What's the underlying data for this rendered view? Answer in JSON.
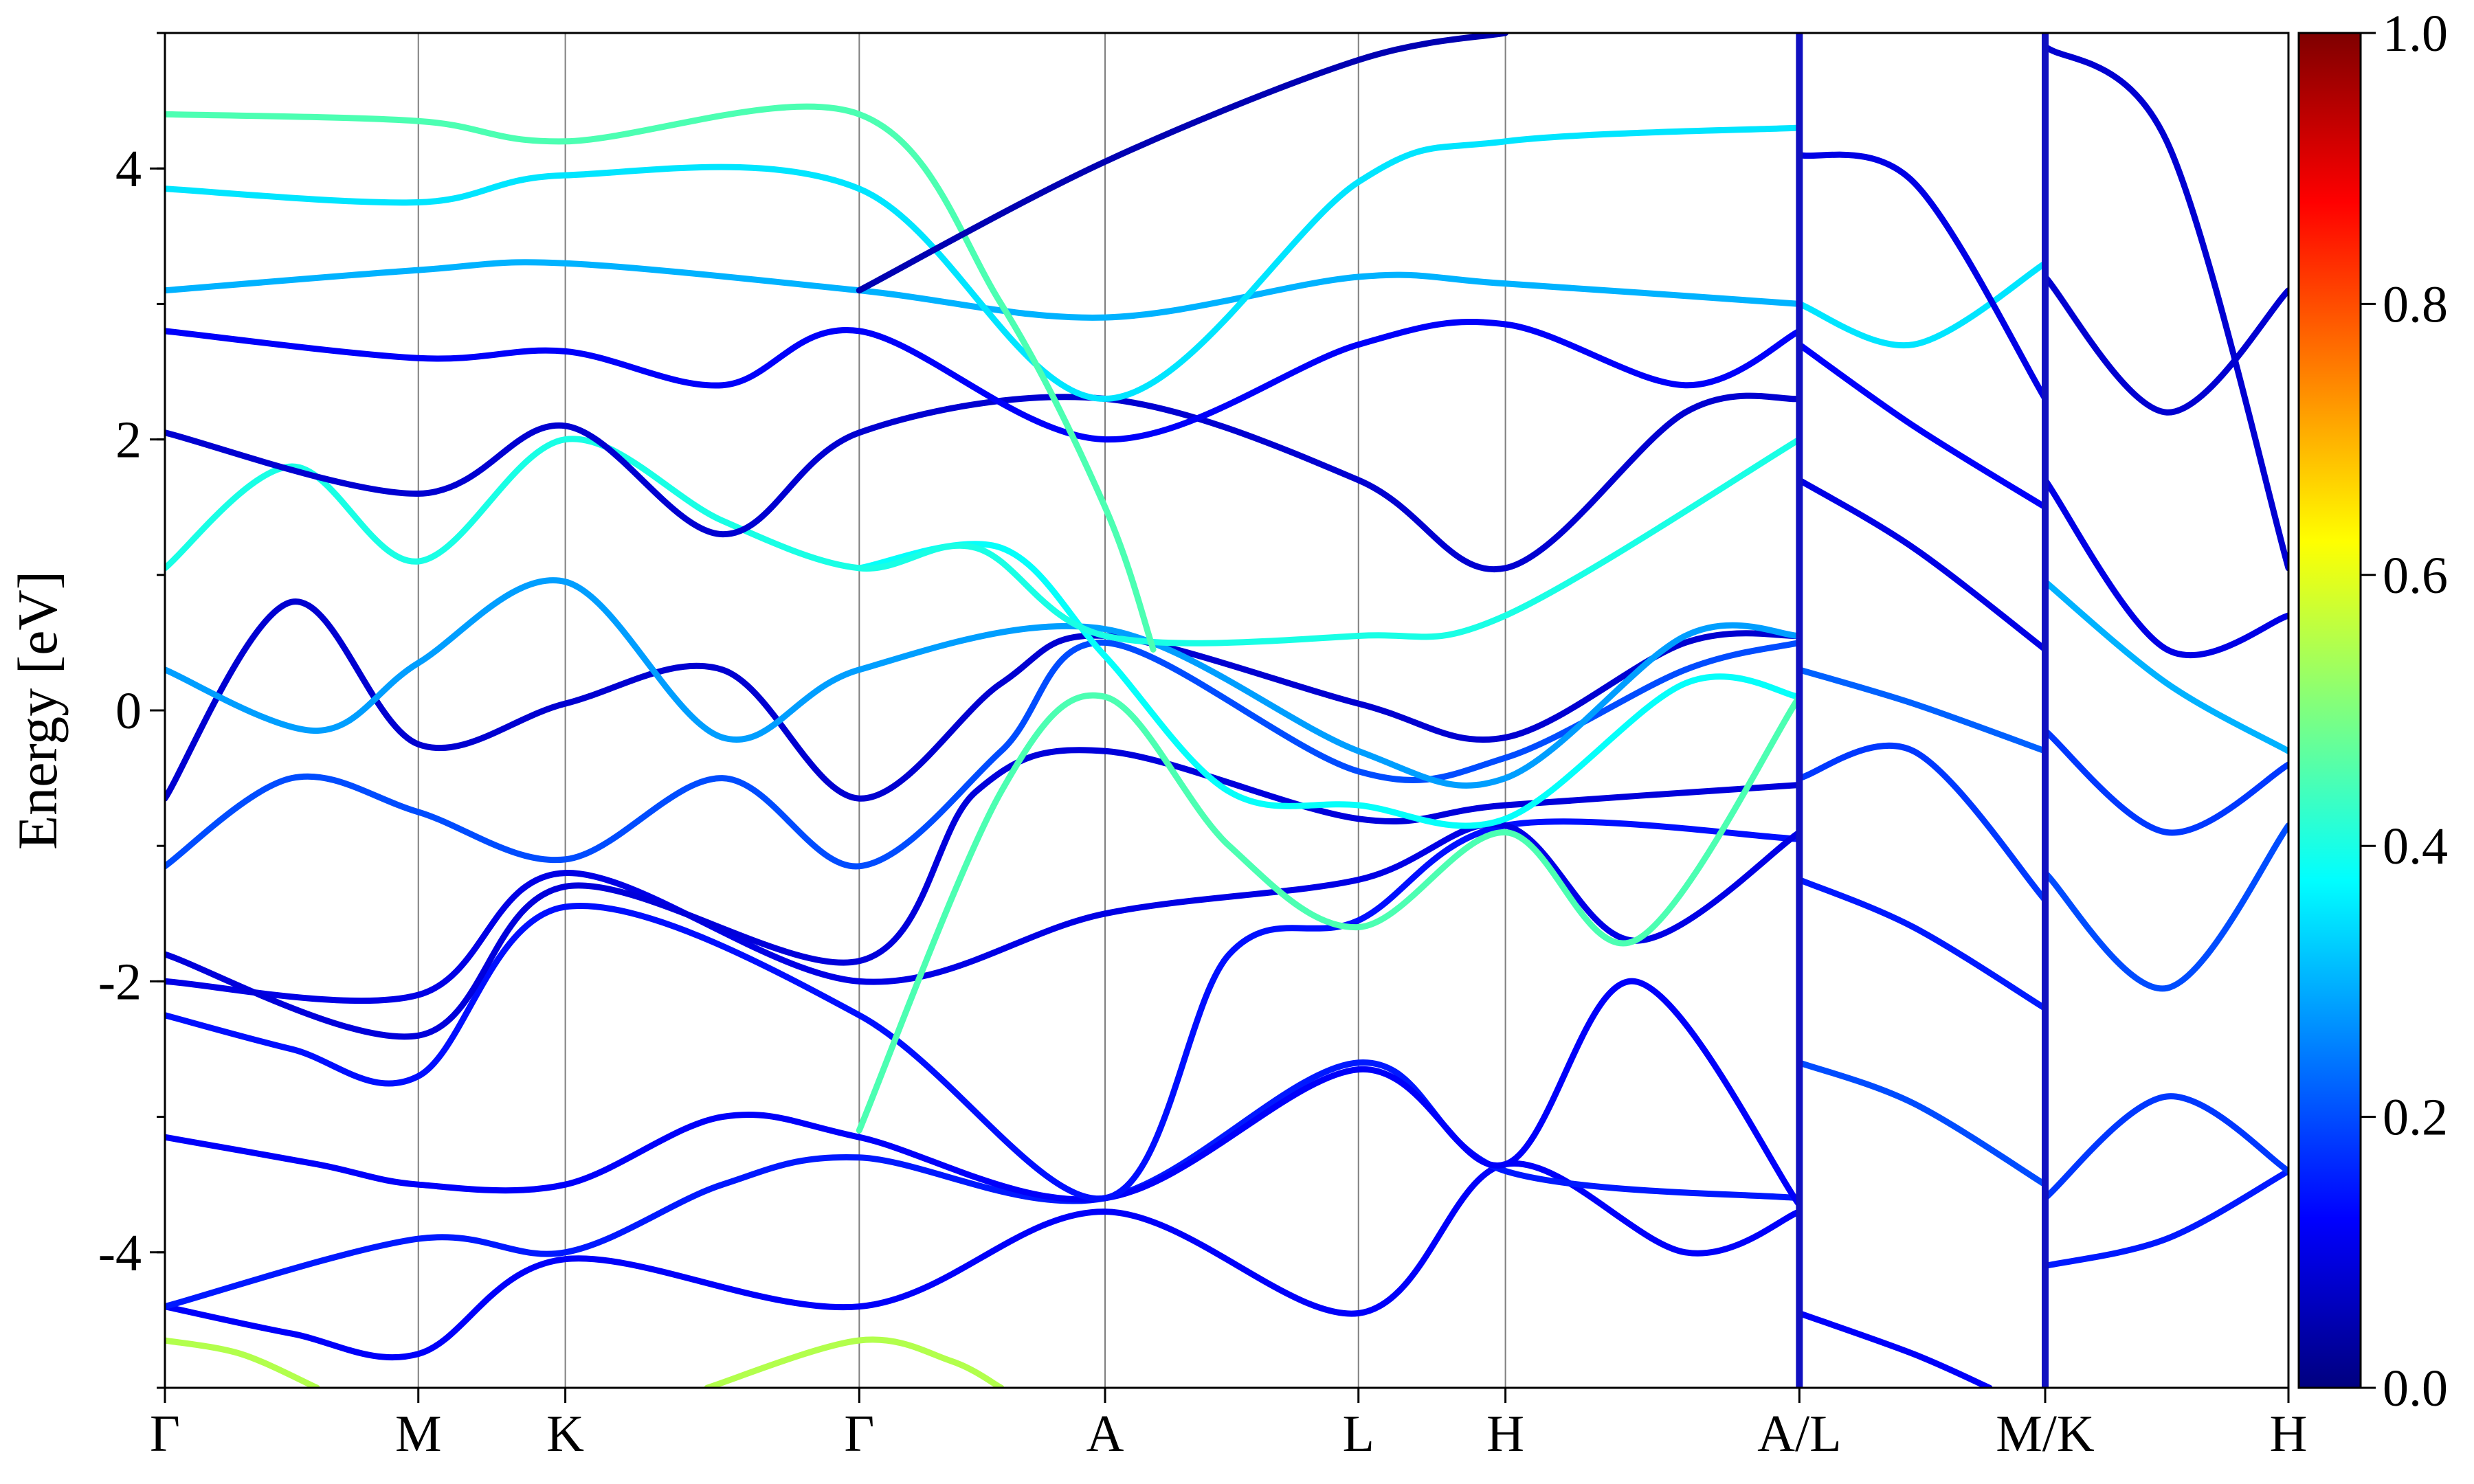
{
  "chart_data": {
    "type": "line",
    "title": "",
    "ylabel": "Energy [eV]",
    "ylim": [
      -5,
      5
    ],
    "yticks": [
      -4,
      -2,
      0,
      2,
      4
    ],
    "ytick_labels": [
      "-4",
      "-2",
      "0",
      "2",
      "4"
    ],
    "grid": false,
    "kpath_positions": [
      0,
      1.0,
      1.58,
      2.74,
      3.71,
      4.71,
      5.29,
      6.45,
      7.42,
      8.38
    ],
    "kpath_labels": [
      "Γ",
      "M",
      "K",
      "Γ",
      "A",
      "L",
      "H",
      "A/L",
      "M/K",
      "H"
    ],
    "path_breaks": [
      6.45,
      7.42
    ],
    "colorbar": {
      "colormap": "jet",
      "range": [
        0.0,
        1.0
      ],
      "ticks": [
        0.0,
        0.2,
        0.4,
        0.6,
        0.8,
        1.0
      ],
      "tick_labels": [
        "0.0",
        "0.2",
        "0.4",
        "0.6",
        "0.8",
        "1.0"
      ],
      "gradient_colors": [
        "#00007f",
        "#0000ff",
        "#007fff",
        "#00ffff",
        "#7fff7f",
        "#ffff00",
        "#ff7f00",
        "#ff0000",
        "#7f0000"
      ]
    },
    "series": [
      {
        "weight": 0.12,
        "points": [
          [
            0,
            -4.4
          ],
          [
            0.5,
            -4.6
          ],
          [
            1.0,
            -4.75
          ],
          [
            1.58,
            -4.05
          ],
          [
            2.74,
            -4.4
          ],
          [
            3.71,
            -3.7
          ],
          [
            4.71,
            -4.45
          ],
          [
            5.29,
            -3.35
          ],
          [
            6.0,
            -4.0
          ],
          [
            6.45,
            -3.7
          ]
        ]
      },
      {
        "weight": 0.15,
        "points": [
          [
            0,
            -4.4
          ],
          [
            1.0,
            -3.9
          ],
          [
            1.58,
            -4.0
          ],
          [
            2.2,
            -3.5
          ],
          [
            2.74,
            -3.3
          ],
          [
            3.71,
            -3.6
          ],
          [
            4.71,
            -2.6
          ],
          [
            5.29,
            -3.4
          ],
          [
            6.45,
            -3.6
          ]
        ]
      },
      {
        "weight": 0.12,
        "points": [
          [
            0,
            -3.15
          ],
          [
            0.6,
            -3.35
          ],
          [
            1.0,
            -3.5
          ],
          [
            1.58,
            -3.5
          ],
          [
            2.2,
            -3.0
          ],
          [
            2.74,
            -3.15
          ],
          [
            3.71,
            -3.6
          ],
          [
            4.71,
            -2.65
          ],
          [
            5.29,
            -3.35
          ],
          [
            5.8,
            -2.0
          ],
          [
            6.45,
            -3.65
          ]
        ]
      },
      {
        "weight": 0.14,
        "points": [
          [
            0,
            -2.25
          ],
          [
            0.5,
            -2.5
          ],
          [
            1.0,
            -2.7
          ],
          [
            1.58,
            -1.45
          ],
          [
            2.74,
            -2.25
          ],
          [
            3.71,
            -3.6
          ],
          [
            4.2,
            -1.8
          ],
          [
            4.71,
            -1.55
          ],
          [
            5.29,
            -0.85
          ],
          [
            6.45,
            -0.95
          ]
        ]
      },
      {
        "weight": 0.1,
        "points": [
          [
            0,
            -2.0
          ],
          [
            1.0,
            -2.1
          ],
          [
            1.58,
            -1.2
          ],
          [
            2.74,
            -2.0
          ],
          [
            3.71,
            -1.5
          ],
          [
            4.71,
            -1.25
          ],
          [
            5.29,
            -0.85
          ],
          [
            5.8,
            -1.7
          ],
          [
            6.45,
            -0.9
          ]
        ]
      },
      {
        "weight": 0.09,
        "points": [
          [
            0,
            -1.8
          ],
          [
            1.0,
            -2.4
          ],
          [
            1.58,
            -1.3
          ],
          [
            2.74,
            -1.85
          ],
          [
            3.2,
            -0.6
          ],
          [
            3.71,
            -0.3
          ],
          [
            4.71,
            -0.8
          ],
          [
            5.29,
            -0.7
          ],
          [
            6.45,
            -0.55
          ]
        ]
      },
      {
        "weight": 0.2,
        "points": [
          [
            0,
            -1.15
          ],
          [
            0.5,
            -0.5
          ],
          [
            1.0,
            -0.75
          ],
          [
            1.58,
            -1.1
          ],
          [
            2.2,
            -0.5
          ],
          [
            2.74,
            -1.15
          ],
          [
            3.3,
            -0.3
          ],
          [
            3.71,
            0.5
          ],
          [
            4.71,
            -0.45
          ],
          [
            5.29,
            -0.35
          ],
          [
            6.0,
            0.3
          ],
          [
            6.45,
            0.5
          ]
        ]
      },
      {
        "weight": 0.08,
        "points": [
          [
            0,
            -0.65
          ],
          [
            0.5,
            0.8
          ],
          [
            1.0,
            -0.25
          ],
          [
            1.58,
            0.05
          ],
          [
            2.2,
            0.3
          ],
          [
            2.74,
            -0.65
          ],
          [
            3.3,
            0.2
          ],
          [
            3.71,
            0.55
          ],
          [
            4.71,
            0.05
          ],
          [
            5.29,
            -0.2
          ],
          [
            6.0,
            0.5
          ],
          [
            6.45,
            0.55
          ]
        ]
      },
      {
        "weight": 0.28,
        "points": [
          [
            0,
            0.3
          ],
          [
            0.6,
            -0.15
          ],
          [
            1.0,
            0.35
          ],
          [
            1.58,
            0.95
          ],
          [
            2.2,
            -0.2
          ],
          [
            2.74,
            0.3
          ],
          [
            3.71,
            0.6
          ],
          [
            4.71,
            -0.3
          ],
          [
            5.29,
            -0.5
          ],
          [
            6.0,
            0.55
          ],
          [
            6.45,
            0.55
          ]
        ]
      },
      {
        "weight": 0.38,
        "points": [
          [
            2.74,
            1.05
          ],
          [
            3.3,
            1.2
          ],
          [
            3.71,
            0.4
          ],
          [
            4.2,
            -0.6
          ],
          [
            4.71,
            -0.7
          ],
          [
            5.29,
            -0.8
          ],
          [
            6.0,
            0.2
          ],
          [
            6.45,
            0.1
          ]
        ]
      },
      {
        "weight": 0.45,
        "points": [
          [
            2.74,
            -3.1
          ],
          [
            3.3,
            -0.6
          ],
          [
            3.71,
            0.1
          ],
          [
            4.2,
            -1.0
          ],
          [
            4.71,
            -1.6
          ],
          [
            5.29,
            -0.9
          ],
          [
            5.8,
            -1.7
          ],
          [
            6.45,
            0.1
          ]
        ]
      },
      {
        "weight": 0.4,
        "points": [
          [
            0,
            1.05
          ],
          [
            0.5,
            1.8
          ],
          [
            1.0,
            1.1
          ],
          [
            1.58,
            2.0
          ],
          [
            2.2,
            1.4
          ],
          [
            2.74,
            1.05
          ],
          [
            3.2,
            1.2
          ],
          [
            3.71,
            0.55
          ],
          [
            4.71,
            0.55
          ],
          [
            5.29,
            0.7
          ],
          [
            6.45,
            2.0
          ]
        ]
      },
      {
        "weight": 0.08,
        "points": [
          [
            0,
            2.05
          ],
          [
            1.0,
            1.6
          ],
          [
            1.58,
            2.1
          ],
          [
            2.2,
            1.3
          ],
          [
            2.74,
            2.05
          ],
          [
            3.71,
            2.3
          ],
          [
            4.71,
            1.7
          ],
          [
            5.29,
            1.05
          ],
          [
            6.0,
            2.2
          ],
          [
            6.45,
            2.3
          ]
        ]
      },
      {
        "weight": 0.12,
        "points": [
          [
            0,
            2.8
          ],
          [
            1.0,
            2.6
          ],
          [
            1.58,
            2.65
          ],
          [
            2.2,
            2.4
          ],
          [
            2.74,
            2.8
          ],
          [
            3.71,
            2.0
          ],
          [
            4.71,
            2.7
          ],
          [
            5.29,
            2.85
          ],
          [
            6.0,
            2.4
          ],
          [
            6.45,
            2.8
          ]
        ]
      },
      {
        "weight": 0.3,
        "points": [
          [
            0,
            3.1
          ],
          [
            1.0,
            3.25
          ],
          [
            1.58,
            3.3
          ],
          [
            2.74,
            3.1
          ],
          [
            3.71,
            2.9
          ],
          [
            4.71,
            3.2
          ],
          [
            5.29,
            3.15
          ],
          [
            6.45,
            3.0
          ]
        ]
      },
      {
        "weight": 0.35,
        "points": [
          [
            0,
            3.85
          ],
          [
            1.0,
            3.75
          ],
          [
            1.58,
            3.95
          ],
          [
            2.74,
            3.85
          ],
          [
            3.71,
            2.3
          ],
          [
            4.71,
            3.9
          ],
          [
            5.29,
            4.2
          ],
          [
            6.45,
            4.3
          ]
        ]
      },
      {
        "weight": 0.45,
        "points": [
          [
            0,
            4.4
          ],
          [
            1.0,
            4.35
          ],
          [
            1.58,
            4.2
          ],
          [
            2.74,
            4.4
          ],
          [
            3.3,
            3.0
          ],
          [
            3.71,
            1.5
          ],
          [
            3.9,
            0.45
          ]
        ]
      },
      {
        "weight": 0.05,
        "points": [
          [
            2.74,
            3.1
          ],
          [
            3.71,
            4.05
          ],
          [
            4.71,
            4.8
          ],
          [
            5.29,
            5.0
          ]
        ]
      },
      {
        "weight": 0.55,
        "points": [
          [
            0,
            -4.65
          ],
          [
            0.3,
            -4.75
          ],
          [
            0.6,
            -5.0
          ]
        ]
      },
      {
        "weight": 0.55,
        "points": [
          [
            2.14,
            -5.0
          ],
          [
            2.74,
            -4.65
          ],
          [
            3.1,
            -4.8
          ],
          [
            3.3,
            -5.0
          ]
        ]
      },
      {
        "weight": 0.12,
        "points": [
          [
            6.45,
            -4.45
          ],
          [
            6.9,
            -4.75
          ],
          [
            7.2,
            -5.0
          ]
        ]
      },
      {
        "weight": 0.2,
        "points": [
          [
            6.45,
            -2.6
          ],
          [
            6.9,
            -2.9
          ],
          [
            7.42,
            -3.5
          ]
        ]
      },
      {
        "weight": 0.15,
        "points": [
          [
            6.45,
            -1.25
          ],
          [
            6.9,
            -1.6
          ],
          [
            7.42,
            -2.2
          ]
        ]
      },
      {
        "weight": 0.18,
        "points": [
          [
            6.45,
            -0.5
          ],
          [
            6.9,
            -0.3
          ],
          [
            7.42,
            -1.4
          ]
        ]
      },
      {
        "weight": 0.22,
        "points": [
          [
            6.45,
            0.3
          ],
          [
            6.9,
            0.05
          ],
          [
            7.42,
            -0.3
          ]
        ]
      },
      {
        "weight": 0.1,
        "points": [
          [
            6.45,
            1.7
          ],
          [
            6.9,
            1.2
          ],
          [
            7.42,
            0.45
          ]
        ]
      },
      {
        "weight": 0.12,
        "points": [
          [
            6.45,
            2.7
          ],
          [
            6.9,
            2.1
          ],
          [
            7.42,
            1.5
          ]
        ]
      },
      {
        "weight": 0.35,
        "points": [
          [
            6.45,
            3.0
          ],
          [
            6.9,
            2.7
          ],
          [
            7.42,
            3.3
          ]
        ]
      },
      {
        "weight": 0.1,
        "points": [
          [
            6.45,
            4.1
          ],
          [
            6.9,
            3.9
          ],
          [
            7.42,
            2.3
          ]
        ]
      },
      {
        "weight": 0.15,
        "points": [
          [
            7.42,
            -4.1
          ],
          [
            7.9,
            -3.9
          ],
          [
            8.38,
            -3.4
          ]
        ]
      },
      {
        "weight": 0.18,
        "points": [
          [
            7.42,
            -3.6
          ],
          [
            7.9,
            -2.85
          ],
          [
            8.38,
            -3.4
          ]
        ]
      },
      {
        "weight": 0.2,
        "points": [
          [
            7.42,
            -1.2
          ],
          [
            7.9,
            -2.05
          ],
          [
            8.38,
            -0.85
          ]
        ]
      },
      {
        "weight": 0.18,
        "points": [
          [
            7.42,
            -0.15
          ],
          [
            7.9,
            -0.9
          ],
          [
            8.38,
            -0.4
          ]
        ]
      },
      {
        "weight": 0.3,
        "points": [
          [
            7.42,
            0.95
          ],
          [
            7.9,
            0.2
          ],
          [
            8.38,
            -0.3
          ]
        ]
      },
      {
        "weight": 0.1,
        "points": [
          [
            7.42,
            1.7
          ],
          [
            7.9,
            0.45
          ],
          [
            8.38,
            0.7
          ]
        ]
      },
      {
        "weight": 0.08,
        "points": [
          [
            7.42,
            3.2
          ],
          [
            7.9,
            2.2
          ],
          [
            8.38,
            3.1
          ]
        ]
      },
      {
        "weight": 0.08,
        "points": [
          [
            7.42,
            4.9
          ],
          [
            7.9,
            4.2
          ],
          [
            8.38,
            1.05
          ]
        ]
      }
    ]
  }
}
